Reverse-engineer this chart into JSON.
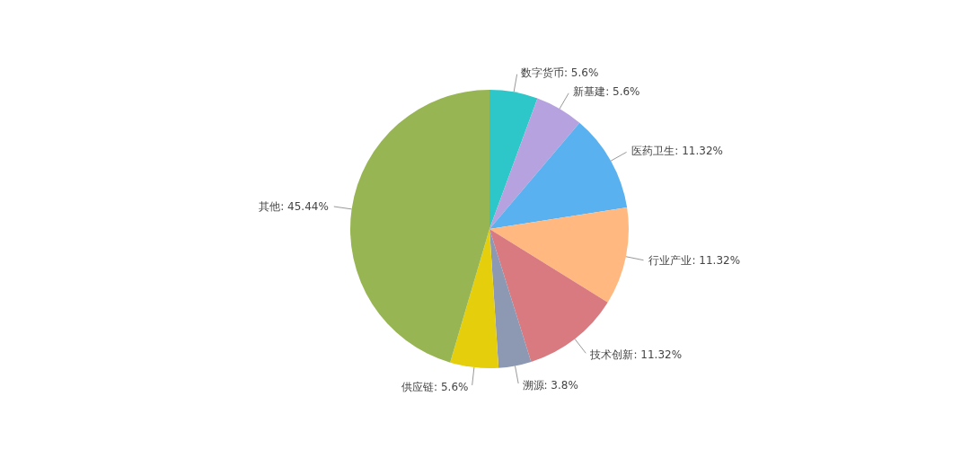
{
  "chart_data": {
    "type": "pie",
    "categories": [
      "数字货币",
      "新基建",
      "医药卫生",
      "行业产业",
      "技术创新",
      "溯源",
      "供应链",
      "其他"
    ],
    "values": [
      5.6,
      5.6,
      11.32,
      11.32,
      11.32,
      3.8,
      5.6,
      45.44
    ],
    "colors": [
      "#2ec7c9",
      "#b6a2de",
      "#5ab1ef",
      "#ffb980",
      "#d87a80",
      "#8d98b3",
      "#e5cf0d",
      "#97b552"
    ],
    "value_labels": [
      "5.6%",
      "5.6%",
      "11.32%",
      "11.32%",
      "11.32%",
      "3.8%",
      "5.6%",
      "45.44%"
    ]
  }
}
